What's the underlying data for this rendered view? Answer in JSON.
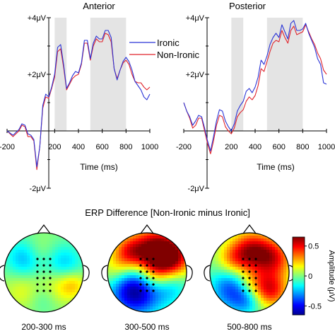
{
  "chart_data": [
    {
      "type": "line",
      "title": "Anterior",
      "xlabel": "Time (ms)",
      "ylabel": "",
      "xlim": [
        -200,
        1000
      ],
      "ylim": [
        -2,
        4
      ],
      "x_ticks": [
        -200,
        200,
        400,
        600,
        800,
        1000
      ],
      "y_ticks": [
        {
          "value": 4,
          "label": "+4μV"
        },
        {
          "value": 2,
          "label": "+2μV"
        },
        {
          "value": -2,
          "label": "-2μV"
        }
      ],
      "shaded_windows": [
        [
          200,
          300
        ],
        [
          500,
          800
        ]
      ],
      "legend_position": "top-right",
      "series": [
        {
          "name": "Ironic",
          "color": "#2b35d6",
          "x": [
            -200,
            -150,
            -100,
            -75,
            -50,
            -25,
            0,
            25,
            50,
            75,
            100,
            125,
            150,
            175,
            200,
            225,
            250,
            275,
            300,
            325,
            350,
            375,
            400,
            425,
            450,
            475,
            500,
            525,
            550,
            575,
            600,
            625,
            650,
            675,
            700,
            725,
            750,
            775,
            800,
            825,
            850,
            875,
            900,
            925,
            950,
            975,
            1000
          ],
          "y": [
            0.0,
            -0.15,
            0.05,
            0.25,
            0.2,
            -0.1,
            -0.15,
            -0.3,
            -1.25,
            -0.55,
            0.9,
            1.3,
            1.2,
            1.55,
            2.0,
            2.95,
            3.05,
            2.35,
            1.5,
            1.7,
            1.95,
            2.1,
            2.05,
            2.4,
            3.2,
            3.2,
            2.55,
            3.1,
            3.35,
            3.25,
            3.25,
            3.55,
            3.55,
            3.3,
            2.2,
            1.8,
            2.15,
            2.45,
            2.6,
            2.45,
            2.15,
            1.75,
            1.6,
            1.45,
            1.2,
            1.1,
            1.3
          ]
        },
        {
          "name": "Non-Ironic",
          "color": "#e0232b",
          "x": [
            -200,
            -150,
            -100,
            -75,
            -50,
            -25,
            0,
            25,
            50,
            75,
            100,
            125,
            150,
            175,
            200,
            225,
            250,
            275,
            300,
            325,
            350,
            375,
            400,
            425,
            450,
            475,
            500,
            525,
            550,
            575,
            600,
            625,
            650,
            675,
            700,
            725,
            750,
            775,
            800,
            825,
            850,
            875,
            900,
            925,
            950,
            975,
            1000
          ],
          "y": [
            0.0,
            -0.2,
            0.0,
            0.2,
            0.15,
            -0.2,
            -0.2,
            -0.35,
            -1.35,
            -0.55,
            0.8,
            1.2,
            1.15,
            1.5,
            1.9,
            2.8,
            2.9,
            2.25,
            1.45,
            1.65,
            1.85,
            1.95,
            2.0,
            2.35,
            3.1,
            3.1,
            2.5,
            3.0,
            3.25,
            3.15,
            3.15,
            3.45,
            3.4,
            3.15,
            2.2,
            1.85,
            2.15,
            2.4,
            2.5,
            2.35,
            2.0,
            1.75,
            1.7,
            1.7,
            1.55,
            1.45,
            1.55
          ]
        }
      ]
    },
    {
      "type": "line",
      "title": "Posterior",
      "xlabel": "Time (ms)",
      "ylabel": "",
      "xlim": [
        -200,
        1000
      ],
      "ylim": [
        -2,
        4
      ],
      "x_ticks": [
        -200,
        200,
        400,
        600,
        800,
        1000
      ],
      "y_ticks": [
        {
          "value": 4,
          "label": "+4μV"
        },
        {
          "value": 2,
          "label": "+2μV"
        },
        {
          "value": -2,
          "label": "-2μV"
        }
      ],
      "shaded_windows": [
        [
          200,
          300
        ],
        [
          500,
          800
        ]
      ],
      "series": [
        {
          "name": "Ironic",
          "color": "#2b35d6",
          "x": [
            -200,
            -175,
            -150,
            -125,
            -100,
            -75,
            -50,
            -25,
            0,
            25,
            50,
            75,
            100,
            125,
            150,
            175,
            200,
            225,
            250,
            275,
            300,
            325,
            350,
            375,
            400,
            425,
            450,
            475,
            500,
            525,
            550,
            575,
            600,
            625,
            650,
            675,
            700,
            725,
            750,
            775,
            800,
            825,
            850,
            875,
            900,
            925,
            950,
            975,
            1000
          ],
          "y": [
            1.0,
            0.7,
            0.5,
            0.2,
            0.35,
            0.55,
            0.5,
            0.1,
            -0.35,
            -0.7,
            -0.2,
            0.35,
            0.75,
            0.7,
            0.35,
            0.15,
            0.0,
            0.25,
            0.7,
            0.9,
            1.05,
            1.4,
            1.5,
            1.35,
            1.55,
            1.9,
            2.5,
            2.35,
            2.65,
            3.05,
            3.3,
            3.45,
            3.3,
            3.75,
            3.5,
            3.25,
            3.8,
            3.9,
            3.55,
            3.55,
            3.6,
            3.8,
            3.45,
            3.2,
            2.95,
            2.55,
            2.35,
            1.7,
            1.65
          ]
        },
        {
          "name": "Non-Ironic",
          "color": "#e0232b",
          "x": [
            -200,
            -175,
            -150,
            -125,
            -100,
            -75,
            -50,
            -25,
            0,
            25,
            50,
            75,
            100,
            125,
            150,
            175,
            200,
            225,
            250,
            275,
            300,
            325,
            350,
            375,
            400,
            425,
            450,
            475,
            500,
            525,
            550,
            575,
            600,
            625,
            650,
            675,
            700,
            725,
            750,
            775,
            800,
            825,
            850,
            875,
            900,
            925,
            950,
            975,
            1000
          ],
          "y": [
            1.0,
            0.7,
            0.45,
            0.1,
            0.2,
            0.45,
            0.45,
            0.0,
            -0.45,
            -0.8,
            -0.35,
            0.2,
            0.55,
            0.5,
            0.15,
            0.0,
            -0.1,
            0.1,
            0.5,
            0.65,
            0.75,
            1.05,
            1.2,
            1.1,
            1.25,
            1.6,
            2.2,
            2.1,
            2.45,
            2.8,
            3.1,
            3.2,
            3.15,
            3.55,
            3.3,
            3.1,
            3.55,
            3.7,
            3.4,
            3.45,
            3.5,
            3.75,
            3.5,
            3.25,
            3.05,
            2.75,
            2.55,
            2.15,
            2.0
          ]
        }
      ]
    },
    {
      "type": "heatmap",
      "title": "ERP Difference [Non-Ironic minus Ironic]",
      "maps": [
        {
          "label": "200-300 ms"
        },
        {
          "label": "300-500 ms"
        },
        {
          "label": "500-800 ms"
        }
      ],
      "colorbar": {
        "label": "Amplitude (μV)",
        "range": [
          -0.65,
          0.65
        ],
        "ticks": [
          {
            "value": 0.5,
            "label": "0.5"
          },
          {
            "value": 0,
            "label": "0"
          },
          {
            "value": -0.5,
            "label": "-0.5"
          }
        ]
      }
    }
  ]
}
